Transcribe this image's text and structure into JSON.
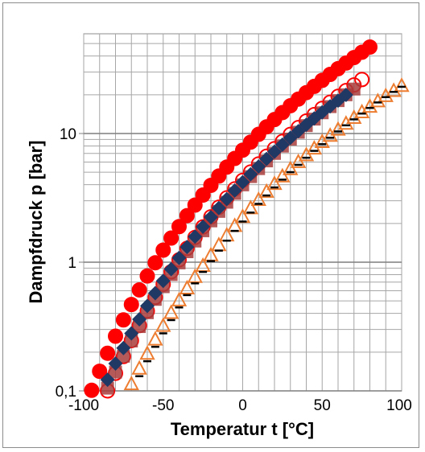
{
  "chart_data": {
    "type": "scatter",
    "title": "",
    "xlabel": "Temperatur t [°C]",
    "ylabel": "Dampfdruck p [bar]",
    "xlim": [
      -100,
      100
    ],
    "ylim": [
      0.1,
      60
    ],
    "yscale": "log",
    "grid": true,
    "legend": "none",
    "x_ticks": [
      -100,
      -50,
      0,
      50,
      100
    ],
    "x_tick_labels": [
      "-100",
      "-50",
      "0",
      "50",
      "100"
    ],
    "y_ticks": [
      0.1,
      1,
      10
    ],
    "y_tick_labels": [
      "0,1",
      "1",
      "10"
    ],
    "series": [
      {
        "marker": "filled-circle",
        "color": "#ff0000",
        "x": [
          -95,
          -90,
          -85,
          -80,
          -75,
          -70,
          -65,
          -60,
          -55,
          -50,
          -45,
          -40,
          -35,
          -30,
          -25,
          -20,
          -15,
          -10,
          -5,
          0,
          5,
          10,
          15,
          20,
          25,
          30,
          35,
          40,
          45,
          50,
          55,
          60,
          65,
          70,
          75,
          80
        ],
        "y": [
          0.101,
          0.142,
          0.196,
          0.266,
          0.356,
          0.469,
          0.609,
          0.781,
          0.99,
          1.241,
          1.539,
          1.89,
          2.301,
          2.777,
          3.326,
          3.955,
          4.671,
          5.482,
          6.397,
          7.425,
          8.573,
          9.85,
          11.27,
          12.83,
          14.55,
          16.44,
          18.51,
          20.77,
          23.23,
          25.9,
          28.8,
          31.92,
          35.29,
          38.91,
          42.8,
          46.96
        ]
      },
      {
        "marker": "open-circle",
        "color": "#ff0000",
        "x": [
          -85,
          -80,
          -75,
          -70,
          -65,
          -60,
          -55,
          -50,
          -45,
          -40,
          -35,
          -30,
          -25,
          -20,
          -15,
          -10,
          -5,
          0,
          5,
          10,
          15,
          20,
          25,
          30,
          35,
          40,
          45,
          50,
          55,
          60,
          65,
          70,
          75
        ],
        "y": [
          0.1,
          0.137,
          0.185,
          0.246,
          0.322,
          0.417,
          0.533,
          0.674,
          0.843,
          1.044,
          1.281,
          1.558,
          1.88,
          2.251,
          2.676,
          3.16,
          3.709,
          4.328,
          5.022,
          5.797,
          6.659,
          7.615,
          8.671,
          9.833,
          11.11,
          12.51,
          14.03,
          15.69,
          17.49,
          19.44,
          21.55,
          23.83,
          26.28
        ]
      },
      {
        "marker": "filled-square",
        "color": "#a83c3c",
        "x": [
          -85,
          -80,
          -75,
          -70,
          -65,
          -60,
          -55,
          -50,
          -45,
          -40,
          -35,
          -30,
          -25,
          -20,
          -15,
          -10,
          -5,
          0,
          5,
          10,
          15,
          20,
          25,
          30,
          35,
          40,
          45,
          50,
          55,
          60,
          65,
          70
        ],
        "y": [
          0.105,
          0.14,
          0.186,
          0.244,
          0.316,
          0.405,
          0.514,
          0.645,
          0.802,
          0.988,
          1.206,
          1.46,
          1.755,
          2.094,
          2.482,
          2.924,
          3.425,
          3.99,
          4.625,
          5.335,
          6.126,
          7.004,
          7.976,
          9.047,
          10.23,
          11.52,
          12.94,
          14.49,
          16.18,
          18.01,
          20.0,
          22.16
        ]
      },
      {
        "marker": "filled-diamond",
        "color": "#1f3864",
        "x": [
          -85,
          -80,
          -75,
          -70,
          -65,
          -60,
          -55,
          -50,
          -45,
          -40,
          -35,
          -30,
          -25,
          -20,
          -15,
          -10,
          -5,
          0,
          5,
          10,
          15,
          20,
          25,
          30,
          35,
          40,
          45,
          50,
          55,
          60,
          65
        ],
        "y": [
          0.122,
          0.163,
          0.215,
          0.28,
          0.36,
          0.457,
          0.575,
          0.716,
          0.884,
          1.081,
          1.311,
          1.578,
          1.886,
          2.238,
          2.639,
          3.094,
          3.607,
          4.183,
          4.827,
          5.545,
          6.341,
          7.222,
          8.192,
          9.258,
          10.43,
          11.7,
          13.09,
          14.61,
          16.25,
          18.02,
          19.94
        ]
      },
      {
        "marker": "open-triangle",
        "color": "#ed7d31",
        "x": [
          -70,
          -65,
          -60,
          -55,
          -50,
          -45,
          -40,
          -35,
          -30,
          -25,
          -20,
          -15,
          -10,
          -5,
          0,
          5,
          10,
          15,
          20,
          25,
          30,
          35,
          40,
          45,
          50,
          55,
          60,
          65,
          70,
          75,
          80,
          85,
          90,
          95,
          100
        ],
        "y": [
          0.112,
          0.148,
          0.193,
          0.249,
          0.318,
          0.401,
          0.502,
          0.622,
          0.764,
          0.93,
          1.124,
          1.349,
          1.606,
          1.9,
          2.233,
          2.609,
          3.031,
          3.503,
          4.028,
          4.611,
          5.255,
          5.964,
          6.744,
          7.597,
          8.529,
          9.543,
          10.65,
          11.84,
          13.14,
          14.54,
          16.05,
          17.68,
          19.43,
          21.3,
          23.31
        ]
      },
      {
        "marker": "black-dash",
        "color": "#000000",
        "x": [
          -65,
          -60,
          -55,
          -50,
          -45,
          -40,
          -35,
          -30,
          -25,
          -20,
          -15,
          -10,
          -5,
          0,
          5,
          10,
          15,
          20,
          25,
          30,
          35,
          40,
          45,
          50,
          55,
          60,
          65,
          70,
          75,
          80,
          85,
          90,
          95,
          100
        ],
        "y": [
          0.13,
          0.17,
          0.22,
          0.28,
          0.355,
          0.445,
          0.555,
          0.685,
          0.84,
          1.02,
          1.23,
          1.47,
          1.75,
          2.07,
          2.43,
          2.84,
          3.3,
          3.81,
          4.38,
          5.01,
          5.71,
          6.48,
          7.33,
          8.26,
          9.27,
          10.38,
          11.58,
          12.88,
          14.29,
          15.8,
          17.43,
          19.18,
          21.06,
          23.07
        ]
      }
    ]
  }
}
